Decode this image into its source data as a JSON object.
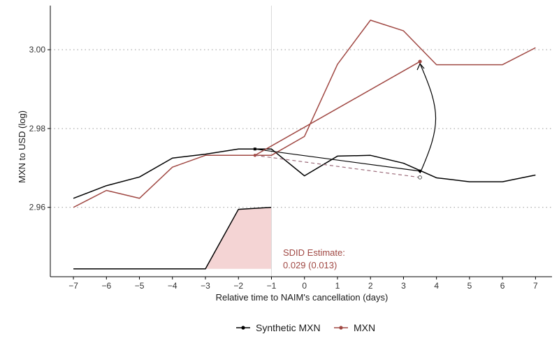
{
  "chart_data": {
    "type": "line",
    "title": "",
    "xlabel": "Relative time to NAIM's cancellation (days)",
    "ylabel": "MXN to USD (log)",
    "x": [
      -7,
      -6,
      -5,
      -4,
      -3,
      -2,
      -1,
      0,
      1,
      2,
      3,
      4,
      5,
      6,
      7
    ],
    "xticks": [
      "−7",
      "−6",
      "−5",
      "−4",
      "−3",
      "−2",
      "−1",
      "0",
      "1",
      "2",
      "3",
      "4",
      "5",
      "6",
      "7"
    ],
    "yticks": [
      "2.96",
      "2.98",
      "3.00"
    ],
    "ytick_values": [
      2.96,
      2.98,
      3.0
    ],
    "xlim": [
      -7.7,
      7.5
    ],
    "ylim": [
      2.9424,
      3.0112
    ],
    "treatment_x": -1,
    "series": [
      {
        "name": "Synthetic MXN",
        "color": "#000000",
        "values": [
          2.9623,
          2.9655,
          2.9677,
          2.9725,
          2.9735,
          2.9748,
          2.9748,
          2.968,
          2.973,
          2.9732,
          2.9712,
          2.9675,
          2.9665,
          2.9665,
          2.9682
        ]
      },
      {
        "name": "MXN",
        "color": "#a04843",
        "values": [
          2.96,
          2.9643,
          2.9623,
          2.9702,
          2.9732,
          2.9732,
          2.9732,
          2.978,
          2.9963,
          3.0075,
          3.0048,
          2.9962,
          2.9962,
          2.9962,
          3.0005
        ]
      }
    ],
    "estimate_lines": {
      "synthetic_pre": [
        -1.5,
        2.9748
      ],
      "synthetic_post": [
        3.5,
        2.9692
      ],
      "treated_pre": [
        -1.5,
        2.9732
      ],
      "treated_post": [
        3.5,
        2.997
      ],
      "counterfactual_post": [
        3.5,
        2.9676
      ]
    },
    "weights": {
      "color": "#f4d4d4",
      "baseline": 2.9444,
      "x": [
        -7,
        -3,
        -2,
        -1
      ],
      "values": [
        2.9444,
        2.9444,
        2.9595,
        2.96
      ]
    },
    "annotation": {
      "label": "SDID Estimate:",
      "value": "0.029 (0.013)"
    },
    "legend": {
      "position": "bottom",
      "entries": [
        "Synthetic MXN",
        "MXN"
      ]
    }
  }
}
